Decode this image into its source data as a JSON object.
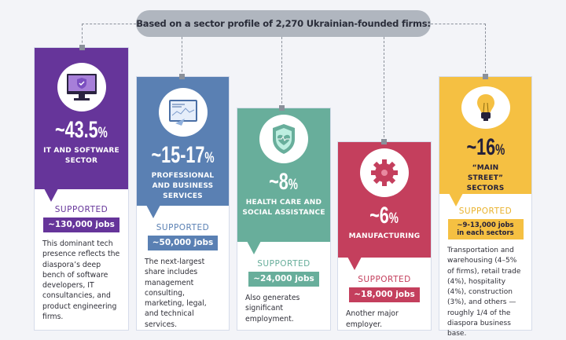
{
  "header": {
    "prefix": "Based on a sector profile of ",
    "count": "2,270",
    "suffix": " Ukrainian-founded firms:"
  },
  "supported_label": "SUPPORTED",
  "colors": {
    "it": "#66359a",
    "prof": "#5a80b3",
    "health": "#68ae9b",
    "mfg": "#c43f5d",
    "main": "#f5c042"
  },
  "sectors": [
    {
      "icon": "monitor-shield-icon",
      "pct": "~43.5",
      "unit": "%",
      "label": "IT AND SOFTWARE SECTOR",
      "jobs": "~130,000 jobs",
      "desc": "This dominant tech presence reflects the diaspora’s deep bench of software developers, IT consultancies, and product engineering firms."
    },
    {
      "icon": "chart-presentation-icon",
      "pct": "~15-17",
      "unit": "%",
      "label": "PROFESSIONAL AND BUSINESS SERVICES",
      "jobs": "~50,000 jobs",
      "desc": "The next-largest share includes management consulting, marketing, legal, and technical services."
    },
    {
      "icon": "health-shield-icon",
      "pct": "~8",
      "unit": "%",
      "label": "HEALTH CARE AND SOCIAL ASSISTANCE",
      "jobs": "~24,000 jobs",
      "desc": "Also generates significant employment."
    },
    {
      "icon": "gear-icon",
      "pct": "~6",
      "unit": "%",
      "label": "MANUFACTURING",
      "jobs": "~18,000 jobs",
      "desc": "Another major employer."
    },
    {
      "icon": "lightbulb-icon",
      "pct": "~16",
      "unit": "%",
      "label": "“MAIN STREET” SECTORS",
      "jobs": "~9-13,000 jobs in each sectors",
      "desc": "Transportation and warehousing (4–5% of firms), retail trade (4%), hospitality (4%), construction (3%), and others — roughly 1/4 of the diaspora business base."
    }
  ]
}
